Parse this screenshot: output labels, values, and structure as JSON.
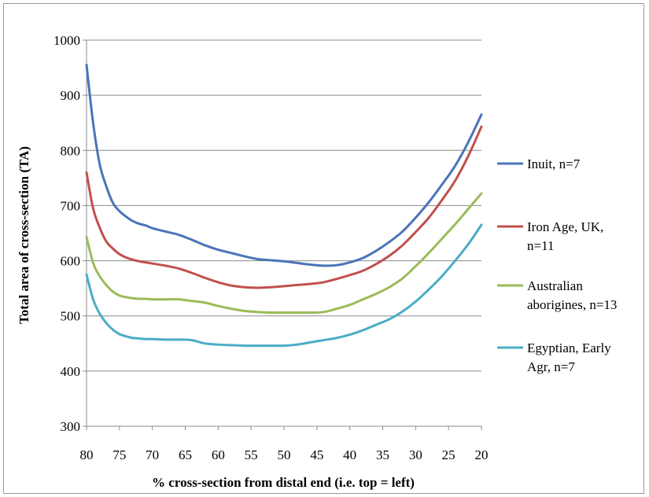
{
  "chart_data": {
    "type": "line",
    "xlabel": "% cross-section from distal end (i.e. top = left)",
    "ylabel": "Total area of  cross-section (TA)",
    "xlim": [
      80,
      20
    ],
    "ylim": [
      300,
      1000
    ],
    "x_ticks": [
      "80",
      "75",
      "70",
      "65",
      "60",
      "55",
      "50",
      "45",
      "40",
      "35",
      "30",
      "25",
      "20"
    ],
    "y_ticks": [
      "300",
      "400",
      "500",
      "600",
      "700",
      "800",
      "900",
      "1000"
    ],
    "grid": "horizontal",
    "legend_position": "right",
    "x": [
      80,
      79,
      78,
      77,
      76,
      75,
      74,
      73,
      72,
      71,
      70,
      68,
      66,
      64,
      62,
      60,
      58,
      56,
      54,
      52,
      50,
      48,
      46,
      44,
      42,
      40,
      38,
      36,
      34,
      32,
      30,
      28,
      26,
      24,
      22,
      20
    ],
    "series": [
      {
        "name": "Inuit, n=7",
        "color": "#4a74b8",
        "values": [
          955,
          850,
          775,
          735,
          705,
          690,
          680,
          672,
          667,
          664,
          659,
          653,
          647,
          638,
          628,
          620,
          614,
          608,
          603,
          601,
          599,
          596,
          593,
          591,
          592,
          597,
          605,
          618,
          634,
          653,
          678,
          706,
          738,
          772,
          815,
          865
        ]
      },
      {
        "name": "Iron Age, UK, n=11",
        "color": "#c0504d",
        "values": [
          760,
          695,
          660,
          635,
          622,
          612,
          606,
          602,
          599,
          597,
          595,
          591,
          586,
          578,
          569,
          561,
          555,
          552,
          551,
          552,
          554,
          556,
          558,
          561,
          567,
          574,
          582,
          594,
          609,
          628,
          652,
          678,
          710,
          745,
          790,
          843
        ]
      },
      {
        "name": "Australian aborigines, n=13",
        "color": "#9bbb59",
        "values": [
          643,
          596,
          572,
          556,
          544,
          537,
          534,
          532,
          531,
          531,
          530,
          530,
          530,
          527,
          524,
          518,
          513,
          509,
          507,
          506,
          506,
          506,
          506,
          507,
          513,
          520,
          530,
          540,
          552,
          568,
          590,
          614,
          640,
          666,
          694,
          722
        ]
      },
      {
        "name": "Egyptian, Early Agr, n=7",
        "color": "#4bacc6",
        "values": [
          575,
          530,
          504,
          487,
          475,
          467,
          463,
          460,
          459,
          458,
          458,
          457,
          457,
          456,
          450,
          448,
          447,
          446,
          446,
          446,
          446,
          448,
          452,
          456,
          460,
          466,
          474,
          484,
          494,
          508,
          526,
          548,
          572,
          600,
          630,
          665
        ]
      }
    ]
  }
}
